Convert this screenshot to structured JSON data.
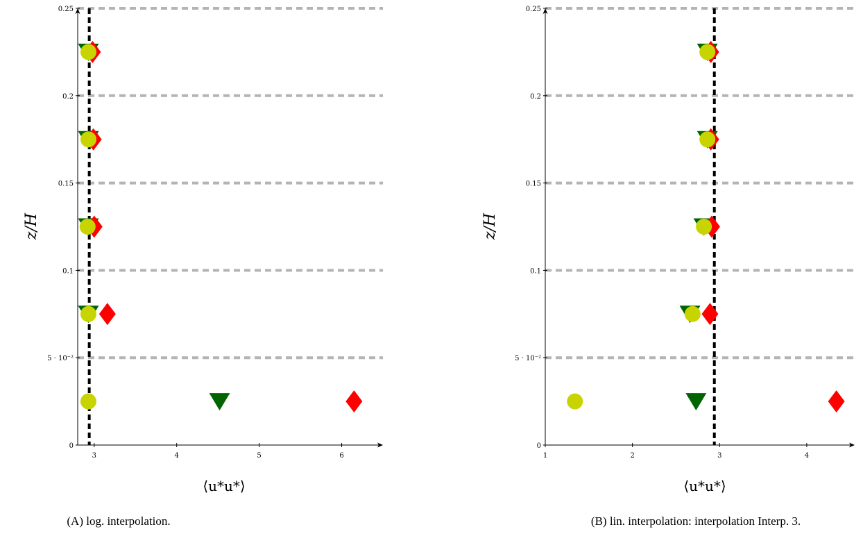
{
  "colors": {
    "grid": "#b4b4b4",
    "reference": "#000000",
    "triangle": "#006400",
    "diamond": "#ff0000",
    "circle": "#c8d400"
  },
  "chart_data": [
    {
      "type": "scatter",
      "caption": "(A) log. interpolation.",
      "xlabel": "⟨u*u*⟩",
      "ylabel": "z/H",
      "xlim": [
        2.8,
        6.5
      ],
      "ylim": [
        0,
        0.25
      ],
      "xticks": [
        3,
        4,
        5,
        6
      ],
      "xtick_labels": [
        "3",
        "4",
        "5",
        "6"
      ],
      "yticks": [
        0,
        0.05,
        0.1,
        0.15,
        0.2,
        0.25
      ],
      "ytick_labels": [
        "0",
        "5 · 10⁻²",
        "0.1",
        "0.15",
        "0.2",
        "0.25"
      ],
      "grid": "horizontal dashed",
      "reference_line_x": 2.94,
      "series": [
        {
          "marker": "triangle-down",
          "color": "#006400",
          "x": [
            4.52,
            2.93,
            2.93,
            2.93,
            2.93
          ],
          "y": [
            0.025,
            0.075,
            0.125,
            0.175,
            0.225
          ]
        },
        {
          "marker": "diamond",
          "color": "#ff0000",
          "x": [
            6.15,
            3.16,
            3.0,
            2.99,
            2.98
          ],
          "y": [
            0.025,
            0.075,
            0.125,
            0.175,
            0.225
          ]
        },
        {
          "marker": "circle",
          "color": "#c8d400",
          "x": [
            2.93,
            2.93,
            2.92,
            2.93,
            2.93
          ],
          "y": [
            0.025,
            0.075,
            0.125,
            0.175,
            0.225
          ]
        }
      ]
    },
    {
      "type": "scatter",
      "caption": "(B) lin. interpolation: interpolation Interp. 3.",
      "xlabel": "⟨u*u*⟩",
      "ylabel": "z/H",
      "xlim": [
        1,
        4.55
      ],
      "ylim": [
        0,
        0.25
      ],
      "xticks": [
        1,
        2,
        3,
        4
      ],
      "xtick_labels": [
        "1",
        "2",
        "3",
        "4"
      ],
      "yticks": [
        0,
        0.05,
        0.1,
        0.15,
        0.2,
        0.25
      ],
      "ytick_labels": [
        "0",
        "5 · 10⁻²",
        "0.1",
        "0.15",
        "0.2",
        "0.25"
      ],
      "grid": "horizontal dashed",
      "reference_line_x": 2.94,
      "series": [
        {
          "marker": "triangle-down",
          "color": "#006400",
          "x": [
            2.73,
            2.66,
            2.82,
            2.86,
            2.86
          ],
          "y": [
            0.025,
            0.075,
            0.125,
            0.175,
            0.225
          ]
        },
        {
          "marker": "diamond",
          "color": "#ff0000",
          "x": [
            4.34,
            2.89,
            2.91,
            2.9,
            2.9
          ],
          "y": [
            0.025,
            0.075,
            0.125,
            0.175,
            0.225
          ]
        },
        {
          "marker": "circle",
          "color": "#c8d400",
          "x": [
            1.34,
            2.69,
            2.82,
            2.86,
            2.86
          ],
          "y": [
            0.025,
            0.075,
            0.125,
            0.175,
            0.225
          ]
        }
      ]
    }
  ]
}
